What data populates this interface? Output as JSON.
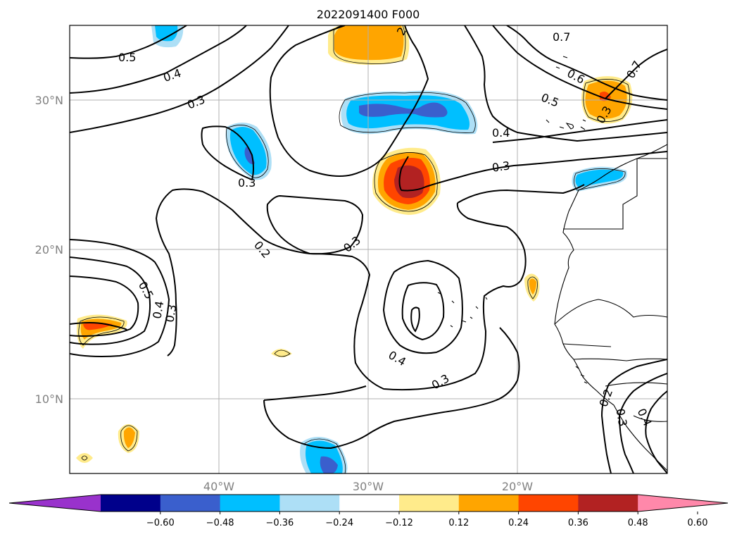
{
  "title": "2022091400 F000",
  "lat_labels": [
    "30°N",
    "20°N",
    "10°N"
  ],
  "lon_labels": [
    "40°W",
    "30°W",
    "20°W"
  ],
  "contour_labels": [
    "0.5",
    "0.4",
    "0.3",
    "0.3",
    "0.2",
    "0.3",
    "0.3",
    "0.4",
    "0.3",
    "0.5",
    "0.4",
    "0.3",
    "0.7",
    "0.6",
    "0.5",
    "0.7",
    "0.4",
    "0.3",
    "0.2",
    "0.3",
    "0.4",
    "2"
  ],
  "colorbar": {
    "tick_labels": [
      "−0.60",
      "−0.48",
      "−0.36",
      "−0.24",
      "−0.12",
      "0.12",
      "0.24",
      "0.36",
      "0.48",
      "0.60"
    ],
    "colors": [
      "#9932CC",
      "#00008B",
      "#3A5FCD",
      "#00BFFF",
      "#ADDFF6",
      "#FFFFFF",
      "#FFEB8B",
      "#FFA500",
      "#FF4500",
      "#B22222",
      "#FF88AA"
    ]
  }
}
